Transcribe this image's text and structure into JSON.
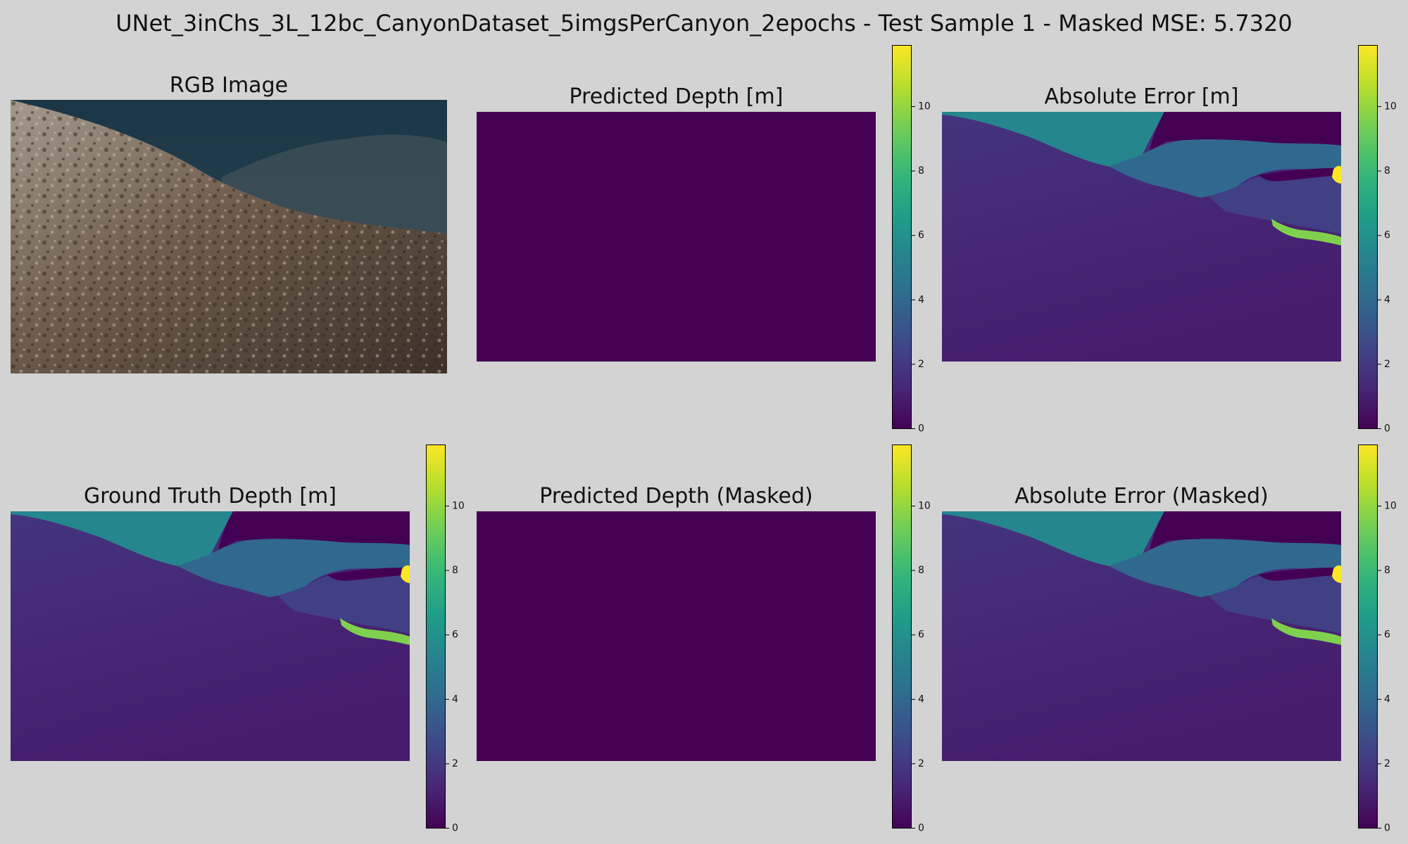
{
  "title": "UNet_3inChs_3L_12bc_CanyonDataset_5imgsPerCanyon_2epochs - Test Sample 1 - Masked MSE: 5.7320",
  "panels": {
    "rgb": {
      "title": "RGB Image"
    },
    "pred": {
      "title": "Predicted Depth [m]"
    },
    "abs_err": {
      "title": "Absolute Error [m]"
    },
    "gt": {
      "title": "Ground Truth Depth [m]"
    },
    "pred_masked": {
      "title": "Predicted Depth (Masked)"
    },
    "abs_err_masked": {
      "title": "Absolute Error (Masked)"
    }
  },
  "colorbar": {
    "colormap": "viridis",
    "range": [
      0,
      11.9
    ],
    "ticks": [
      "0",
      "2",
      "4",
      "6",
      "8",
      "10"
    ]
  },
  "chart_data": {
    "type": "heatmap",
    "masked_mse": 5.732,
    "colormap": "viridis",
    "vmin": 0,
    "vmax": 11.9,
    "predicted_depth_value": 0,
    "depth_regions_m": {
      "near_rock_floor": 1.3,
      "upper_left_slope": 5.5,
      "upper_right_background": 0,
      "middle_right_band": 4.0,
      "lower_right_band": 2.3,
      "green_streak": 9.6,
      "yellow_patch": 11.9
    },
    "colorbar_ticks": [
      0,
      2,
      4,
      6,
      8,
      10
    ]
  }
}
